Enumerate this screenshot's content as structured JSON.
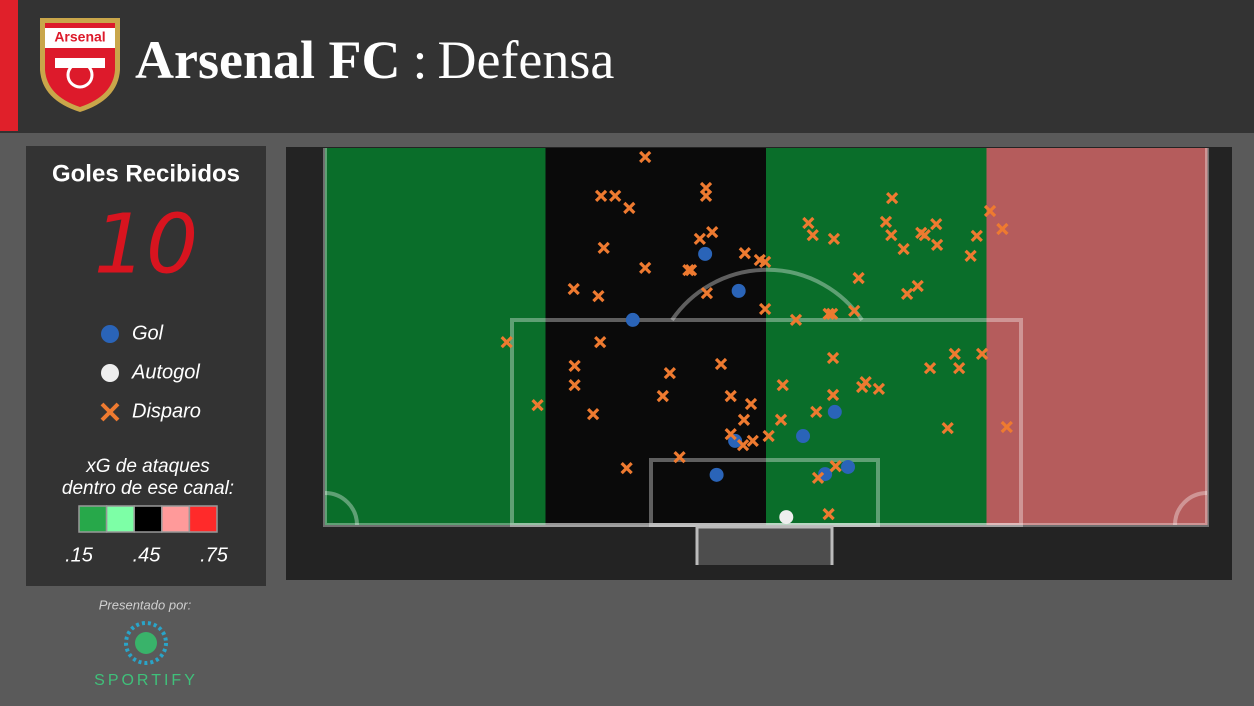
{
  "header": {
    "logo_text": "Arsenal",
    "title": "Arsenal FC",
    "separator": ":",
    "subtitle": "Defensa"
  },
  "goals": {
    "title": "Goles Recibidos",
    "value": 10
  },
  "footer": {
    "presented_by": "Presentado por:",
    "brand": "SPORTIFY"
  },
  "xg_legend": {
    "title": [
      "xG de ataques",
      "dentro de ese canal:"
    ],
    "colors": [
      "#27a84a",
      "#7dffa6",
      "#000000",
      "#ff9a9a",
      "#ff2a2a"
    ],
    "xlim": [
      0.15,
      0.75
    ],
    "xticks": [
      {
        "value": 0.15,
        "label": ".15"
      },
      {
        "value": 0.45,
        "label": ".45"
      },
      {
        "value": 0.75,
        "label": ".75"
      }
    ]
  },
  "chart_data": {
    "type": "scatter",
    "xlim": [
      0,
      100
    ],
    "ylim": [
      0,
      100
    ],
    "channels": [
      "#0a6e2a",
      "#0a0a0a",
      "#0a6e2a",
      "#b55c5c"
    ],
    "series": [
      {
        "name": "Gol",
        "color": "#2a64b8",
        "marker": "circle",
        "x": [
          43.1,
          46.9,
          34.9,
          46.5,
          54.2,
          57.8,
          59.3,
          56.7,
          44.4
        ],
        "y": [
          28.1,
          37.9,
          45.6,
          77.7,
          76.4,
          70.0,
          84.6,
          86.5,
          86.7
        ]
      },
      {
        "name": "Autogol",
        "color": "#eeeeee",
        "marker": "circle",
        "x": [
          52.3
        ],
        "y": [
          97.9
        ]
      },
      {
        "name": "Disparo",
        "color": "#ee7a30",
        "marker": "cross",
        "x": [
          36.3,
          31.3,
          32.9,
          34.5,
          43.2,
          43.2,
          31.6,
          42.5,
          43.9,
          36.3,
          41.2,
          41.5,
          47.6,
          49.3,
          49.9,
          28.2,
          31.0,
          43.3,
          49.9,
          31.2,
          20.6,
          28.3,
          28.3,
          39.1,
          38.3,
          44.9,
          46.0,
          48.3,
          47.5,
          30.4,
          24.1,
          46.0,
          47.4,
          48.5,
          50.3,
          51.7,
          51.9,
          40.2,
          34.2,
          53.4,
          54.8,
          55.3,
          57.7,
          57.1,
          57.5,
          60.0,
          60.5,
          57.6,
          57.6,
          55.7,
          57.9,
          55.9,
          57.1,
          60.9,
          61.3,
          62.8,
          64.3,
          63.6,
          64.2,
          65.6,
          67.6,
          68.0,
          69.3,
          69.4,
          66.0,
          67.2,
          68.6,
          71.4,
          71.9,
          74.5,
          70.6,
          73.2,
          73.9,
          75.4,
          76.8,
          77.3
        ],
        "y": [
          2.4,
          12.7,
          12.7,
          15.9,
          10.6,
          12.7,
          26.5,
          24.1,
          22.3,
          31.8,
          32.4,
          32.4,
          27.9,
          29.7,
          30.2,
          37.4,
          39.3,
          38.5,
          42.7,
          51.5,
          51.5,
          57.8,
          62.9,
          59.7,
          65.8,
          57.3,
          65.8,
          67.9,
          72.1,
          70.6,
          68.2,
          75.9,
          78.8,
          77.7,
          76.4,
          72.1,
          62.9,
          82.0,
          84.9,
          45.6,
          19.9,
          23.1,
          24.1,
          44.0,
          44.0,
          43.2,
          34.5,
          55.7,
          65.5,
          70.0,
          84.4,
          87.5,
          97.1,
          63.4,
          62.1,
          63.9,
          13.3,
          19.6,
          23.1,
          26.8,
          22.5,
          23.1,
          20.2,
          25.7,
          38.7,
          36.6,
          58.4,
          54.6,
          58.4,
          54.6,
          74.3,
          28.6,
          23.3,
          16.7,
          21.5,
          74.0
        ]
      }
    ]
  }
}
